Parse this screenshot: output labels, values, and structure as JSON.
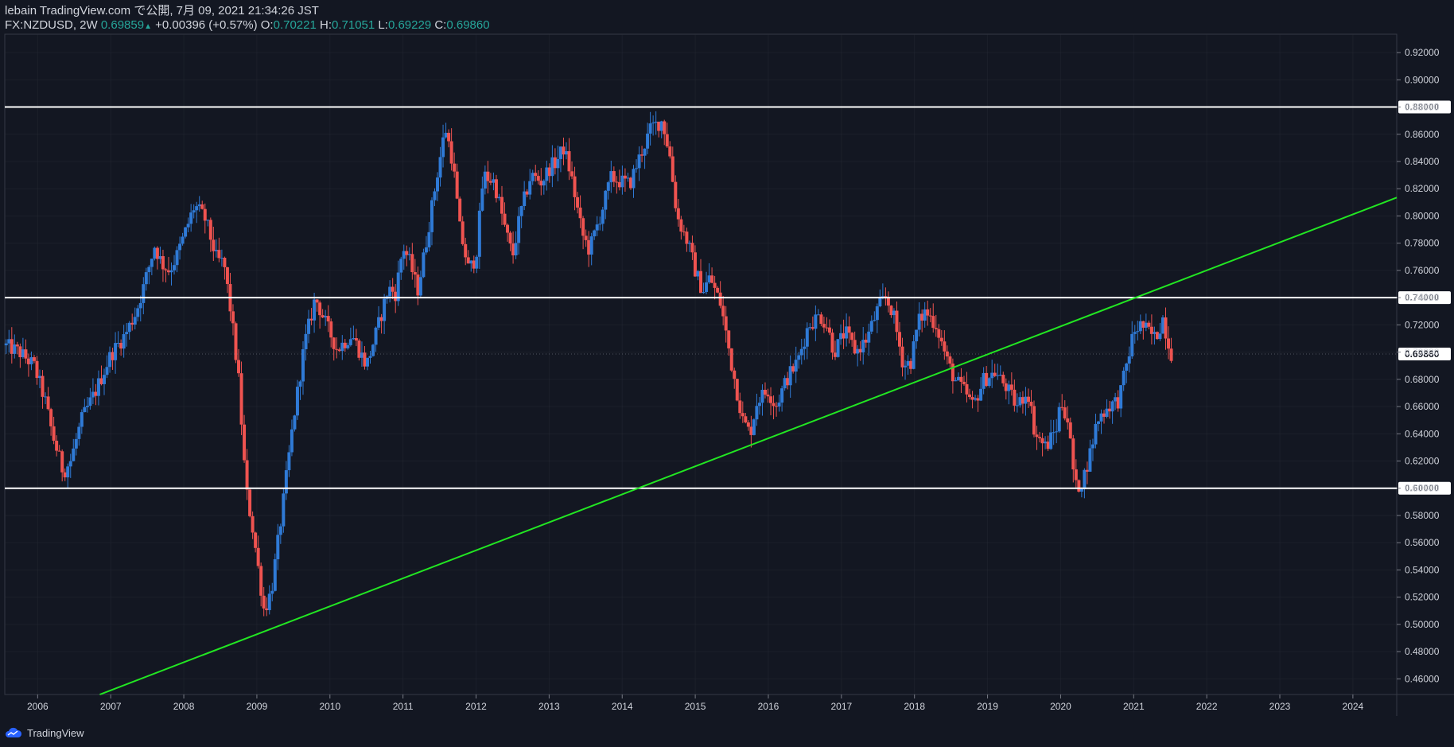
{
  "header": {
    "publish_line": "lebain TradingView.com で公開, 7月 09, 2021 21:34:26 JST",
    "symbol_interval": "FX:NZDUSD, 2W",
    "last": "0.69859",
    "change_arrow": "▲",
    "change": "+0.00396 (+0.57%)",
    "o_label": "O:",
    "o_value": "0.70221",
    "h_label": "H:",
    "h_value": "0.71051",
    "l_label": "L:",
    "l_value": "0.69229",
    "c_label": "C:",
    "c_value": "0.69860"
  },
  "footer": {
    "brand": "TradingView",
    "logo_icon": "tradingview-cloud-icon"
  },
  "colors": {
    "background": "#131722",
    "up": "#2f7ad6",
    "down": "#ef5350",
    "trend": "#22e622",
    "level": "#ffffff",
    "grid": "#2a2e39"
  },
  "chart_data": {
    "type": "candlestick",
    "symbol": "FX:NZDUSD",
    "interval": "2W",
    "x_range": [
      2005.55,
      2024.6
    ],
    "y_range": [
      0.4485,
      0.9335
    ],
    "x_ticks": [
      "2006",
      "2007",
      "2008",
      "2009",
      "2010",
      "2011",
      "2012",
      "2013",
      "2014",
      "2015",
      "2016",
      "2017",
      "2018",
      "2019",
      "2020",
      "2021",
      "2022",
      "2023",
      "2024"
    ],
    "y_ticks": [
      "0.46000",
      "0.48000",
      "0.50000",
      "0.52000",
      "0.54000",
      "0.56000",
      "0.58000",
      "0.60000",
      "0.62000",
      "0.64000",
      "0.66000",
      "0.68000",
      "0.70000",
      "0.72000",
      "0.74000",
      "0.76000",
      "0.78000",
      "0.80000",
      "0.82000",
      "0.84000",
      "0.86000",
      "0.88000",
      "0.90000",
      "0.92000"
    ],
    "price_key_points": [
      [
        2005.55,
        0.705
      ],
      [
        2005.75,
        0.7
      ],
      [
        2005.95,
        0.69
      ],
      [
        2006.1,
        0.665
      ],
      [
        2006.2,
        0.64
      ],
      [
        2006.35,
        0.612
      ],
      [
        2006.45,
        0.62
      ],
      [
        2006.6,
        0.65
      ],
      [
        2006.8,
        0.672
      ],
      [
        2007.0,
        0.698
      ],
      [
        2007.2,
        0.713
      ],
      [
        2007.35,
        0.73
      ],
      [
        2007.45,
        0.748
      ],
      [
        2007.6,
        0.778
      ],
      [
        2007.7,
        0.765
      ],
      [
        2007.8,
        0.76
      ],
      [
        2007.9,
        0.77
      ],
      [
        2008.0,
        0.785
      ],
      [
        2008.15,
        0.808
      ],
      [
        2008.3,
        0.797
      ],
      [
        2008.45,
        0.768
      ],
      [
        2008.55,
        0.765
      ],
      [
        2008.65,
        0.727
      ],
      [
        2008.75,
        0.68
      ],
      [
        2008.85,
        0.6
      ],
      [
        2008.95,
        0.568
      ],
      [
        2009.1,
        0.51
      ],
      [
        2009.2,
        0.525
      ],
      [
        2009.35,
        0.585
      ],
      [
        2009.5,
        0.65
      ],
      [
        2009.65,
        0.705
      ],
      [
        2009.8,
        0.74
      ],
      [
        2009.95,
        0.72
      ],
      [
        2010.1,
        0.702
      ],
      [
        2010.3,
        0.713
      ],
      [
        2010.5,
        0.69
      ],
      [
        2010.65,
        0.717
      ],
      [
        2010.8,
        0.747
      ],
      [
        2010.9,
        0.743
      ],
      [
        2011.0,
        0.778
      ],
      [
        2011.1,
        0.765
      ],
      [
        2011.2,
        0.745
      ],
      [
        2011.3,
        0.775
      ],
      [
        2011.45,
        0.825
      ],
      [
        2011.58,
        0.865
      ],
      [
        2011.68,
        0.84
      ],
      [
        2011.78,
        0.79
      ],
      [
        2011.9,
        0.76
      ],
      [
        2012.0,
        0.77
      ],
      [
        2012.1,
        0.83
      ],
      [
        2012.25,
        0.825
      ],
      [
        2012.4,
        0.79
      ],
      [
        2012.5,
        0.77
      ],
      [
        2012.6,
        0.8
      ],
      [
        2012.75,
        0.83
      ],
      [
        2012.9,
        0.825
      ],
      [
        2013.0,
        0.835
      ],
      [
        2013.1,
        0.84
      ],
      [
        2013.2,
        0.85
      ],
      [
        2013.3,
        0.83
      ],
      [
        2013.45,
        0.787
      ],
      [
        2013.55,
        0.775
      ],
      [
        2013.7,
        0.8
      ],
      [
        2013.85,
        0.828
      ],
      [
        2014.0,
        0.825
      ],
      [
        2014.1,
        0.823
      ],
      [
        2014.25,
        0.845
      ],
      [
        2014.4,
        0.865
      ],
      [
        2014.55,
        0.87
      ],
      [
        2014.65,
        0.845
      ],
      [
        2014.75,
        0.8
      ],
      [
        2014.9,
        0.78
      ],
      [
        2015.0,
        0.76
      ],
      [
        2015.1,
        0.745
      ],
      [
        2015.2,
        0.755
      ],
      [
        2015.35,
        0.735
      ],
      [
        2015.5,
        0.69
      ],
      [
        2015.65,
        0.65
      ],
      [
        2015.75,
        0.64
      ],
      [
        2015.85,
        0.665
      ],
      [
        2016.0,
        0.672
      ],
      [
        2016.1,
        0.66
      ],
      [
        2016.25,
        0.68
      ],
      [
        2016.4,
        0.693
      ],
      [
        2016.55,
        0.72
      ],
      [
        2016.7,
        0.727
      ],
      [
        2016.8,
        0.72
      ],
      [
        2016.9,
        0.7
      ],
      [
        2017.05,
        0.715
      ],
      [
        2017.2,
        0.7
      ],
      [
        2017.35,
        0.71
      ],
      [
        2017.5,
        0.732
      ],
      [
        2017.6,
        0.74
      ],
      [
        2017.7,
        0.73
      ],
      [
        2017.85,
        0.69
      ],
      [
        2017.95,
        0.693
      ],
      [
        2018.05,
        0.722
      ],
      [
        2018.15,
        0.73
      ],
      [
        2018.3,
        0.72
      ],
      [
        2018.45,
        0.693
      ],
      [
        2018.55,
        0.68
      ],
      [
        2018.7,
        0.67
      ],
      [
        2018.8,
        0.66
      ],
      [
        2018.95,
        0.68
      ],
      [
        2019.1,
        0.685
      ],
      [
        2019.25,
        0.675
      ],
      [
        2019.4,
        0.66
      ],
      [
        2019.55,
        0.672
      ],
      [
        2019.65,
        0.64
      ],
      [
        2019.8,
        0.63
      ],
      [
        2019.95,
        0.645
      ],
      [
        2020.0,
        0.665
      ],
      [
        2020.1,
        0.65
      ],
      [
        2020.2,
        0.6
      ],
      [
        2020.3,
        0.605
      ],
      [
        2020.4,
        0.625
      ],
      [
        2020.5,
        0.65
      ],
      [
        2020.65,
        0.66
      ],
      [
        2020.8,
        0.665
      ],
      [
        2020.9,
        0.69
      ],
      [
        2021.0,
        0.715
      ],
      [
        2021.1,
        0.72
      ],
      [
        2021.2,
        0.715
      ],
      [
        2021.3,
        0.71
      ],
      [
        2021.4,
        0.725
      ],
      [
        2021.5,
        0.7
      ],
      [
        2021.52,
        0.6986
      ]
    ],
    "horizontal_levels": [
      0.88,
      0.74,
      0.6
    ],
    "trendline": {
      "start": [
        2006.85,
        0.4485
      ],
      "end": [
        2024.6,
        0.8135
      ]
    },
    "last_price_label": "0.69860",
    "level_labels": [
      "0.88000",
      "0.74000",
      "0.60000"
    ]
  }
}
